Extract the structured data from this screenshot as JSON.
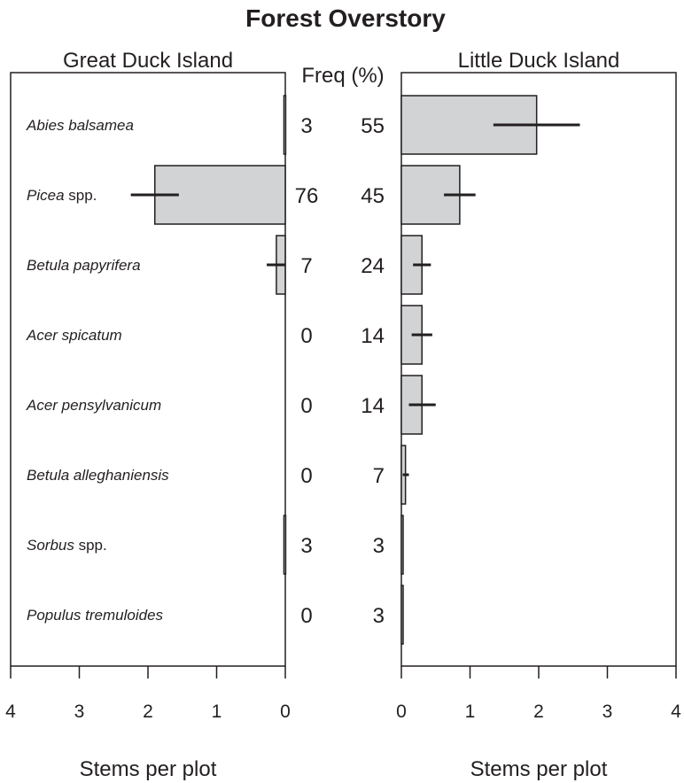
{
  "chart_data": {
    "type": "bar",
    "title": "Forest Overstory",
    "freq_header": "Freq (%)",
    "categories": [
      {
        "name": "Abies balsamea",
        "suffix": ""
      },
      {
        "name": "Picea",
        "suffix": " spp."
      },
      {
        "name": "Betula papyrifera",
        "suffix": ""
      },
      {
        "name": "Acer spicatum",
        "suffix": ""
      },
      {
        "name": "Acer pensylvanicum",
        "suffix": ""
      },
      {
        "name": "Betula alleghaniensis",
        "suffix": ""
      },
      {
        "name": "Sorbus",
        "suffix": " spp."
      },
      {
        "name": "Populus tremuloides",
        "suffix": ""
      }
    ],
    "panels": [
      {
        "name": "Great Duck Island",
        "xlabel": "Stems per plot",
        "xlim": [
          0,
          4
        ],
        "ticks": [
          "0",
          "1",
          "2",
          "3",
          "4"
        ],
        "values": [
          0.02,
          1.9,
          0.13,
          0,
          0,
          0,
          0.02,
          0
        ],
        "error_low": [
          0.02,
          2.25,
          0.27,
          0,
          0,
          0,
          0.02,
          0
        ],
        "error_high": [
          0.02,
          1.55,
          0.0,
          0,
          0,
          0,
          0.02,
          0
        ],
        "freq": [
          "3",
          "76",
          "7",
          "0",
          "0",
          "0",
          "3",
          "0"
        ]
      },
      {
        "name": "Little Duck Island",
        "xlabel": "Stems per plot",
        "xlim": [
          0,
          4
        ],
        "ticks": [
          "0",
          "1",
          "2",
          "3",
          "4"
        ],
        "values": [
          1.97,
          0.85,
          0.3,
          0.3,
          0.3,
          0.06,
          0.02,
          0.02
        ],
        "error_low": [
          1.34,
          0.62,
          0.17,
          0.15,
          0.11,
          0.02,
          0.02,
          0.02
        ],
        "error_high": [
          2.6,
          1.08,
          0.43,
          0.45,
          0.5,
          0.11,
          0.02,
          0.02
        ],
        "freq": [
          "55",
          "45",
          "24",
          "14",
          "14",
          "7",
          "3",
          "3"
        ]
      }
    ],
    "grid": false,
    "bar_color": "#d1d3d4",
    "ink_color": "#231f20"
  }
}
